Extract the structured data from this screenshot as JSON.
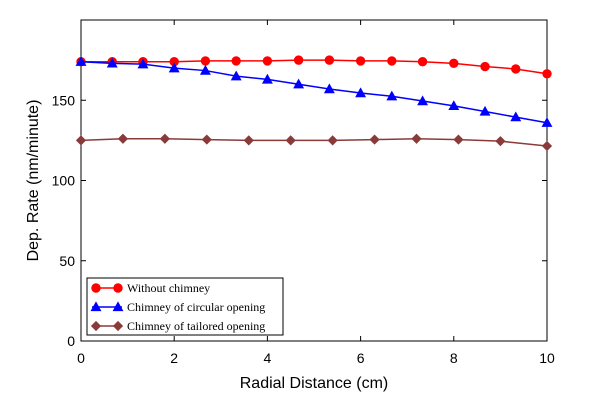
{
  "chart_data": {
    "type": "line",
    "xlabel": "Radial Distance (cm)",
    "ylabel": "Dep. Rate (nm/minute)",
    "xlim": [
      0,
      10
    ],
    "ylim": [
      0,
      200
    ],
    "xticks": [
      0,
      2,
      4,
      6,
      8,
      10
    ],
    "yticks": [
      0,
      50,
      100,
      150
    ],
    "grid": false,
    "legend_position": "bottom-left",
    "series": [
      {
        "name": "Without chimney",
        "color": "#ff0000",
        "marker": "circle",
        "x": [
          0,
          0.67,
          1.33,
          2,
          2.67,
          3.33,
          4,
          4.67,
          5.33,
          6,
          6.67,
          7.33,
          8,
          8.67,
          9.33,
          10
        ],
        "y": [
          174,
          174,
          174,
          174,
          174.5,
          174.5,
          174.5,
          175,
          175,
          174.5,
          174.5,
          174,
          173,
          171,
          169.5,
          166.5
        ]
      },
      {
        "name": "Chimney of circular opening",
        "color": "#0000ff",
        "marker": "triangle",
        "x": [
          0,
          0.67,
          1.33,
          2,
          2.67,
          3.33,
          4,
          4.67,
          5.33,
          6,
          6.67,
          7.33,
          8,
          8.67,
          9.33,
          10
        ],
        "y": [
          174,
          173,
          172.5,
          170,
          168.5,
          165,
          163,
          160,
          157,
          154.5,
          152.5,
          149.5,
          146.5,
          143,
          139.5,
          136
        ]
      },
      {
        "name": "Chimney of tailored opening",
        "color": "#8b3a3a",
        "marker": "diamond",
        "x": [
          0,
          0.9,
          1.8,
          2.7,
          3.6,
          4.5,
          5.4,
          6.3,
          7.2,
          8.1,
          9,
          10
        ],
        "y": [
          125,
          126,
          126,
          125.5,
          125,
          125,
          125,
          125.5,
          126,
          125.5,
          124.5,
          121.5
        ]
      }
    ]
  }
}
